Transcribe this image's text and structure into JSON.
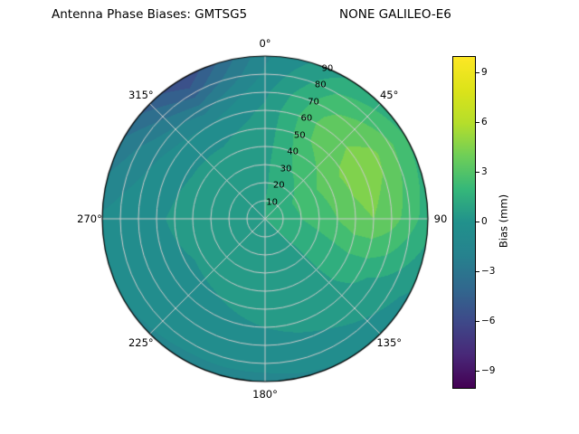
{
  "title": {
    "left": "Antenna Phase Biases: GMTSG5",
    "right": "NONE GALILEO-E6"
  },
  "chart_data": {
    "type": "heatmap",
    "projection": "polar",
    "title": "Antenna Phase Biases: GMTSG5        NONE GALILEO-E6",
    "azimuth_deg": [
      0,
      30,
      60,
      90,
      120,
      150,
      180,
      210,
      240,
      270,
      300,
      330
    ],
    "zenith_deg": [
      0,
      10,
      20,
      30,
      40,
      50,
      60,
      70,
      80,
      90
    ],
    "values_mm": [
      [
        1.0,
        1.0,
        1.0,
        1.0,
        1.0,
        1.0,
        1.0,
        1.0,
        1.0,
        1.0,
        1.0,
        1.0
      ],
      [
        1.0,
        1.2,
        1.5,
        1.5,
        1.2,
        0.8,
        0.6,
        0.5,
        0.5,
        0.6,
        0.8,
        0.9
      ],
      [
        0.9,
        1.5,
        2.2,
        2.0,
        1.2,
        0.7,
        0.5,
        0.3,
        0.3,
        0.5,
        0.6,
        0.8
      ],
      [
        0.8,
        2.0,
        2.8,
        2.5,
        1.3,
        0.6,
        0.4,
        0.2,
        0.2,
        0.4,
        0.4,
        0.6
      ],
      [
        0.6,
        2.5,
        3.5,
        3.0,
        1.4,
        0.5,
        0.3,
        0.1,
        0.1,
        0.3,
        0.2,
        0.3
      ],
      [
        0.4,
        3.0,
        4.2,
        3.8,
        1.4,
        0.4,
        0.2,
        0.0,
        -0.1,
        0.1,
        -0.1,
        -0.2
      ],
      [
        0.2,
        3.2,
        4.5,
        4.0,
        1.2,
        0.3,
        0.0,
        -0.2,
        -0.3,
        -0.1,
        -0.5,
        -1.0
      ],
      [
        -0.2,
        2.8,
        4.2,
        3.5,
        0.8,
        0.0,
        -0.3,
        -0.5,
        -0.5,
        -0.3,
        -1.2,
        -2.5
      ],
      [
        -0.8,
        2.0,
        3.2,
        2.5,
        0.3,
        -0.5,
        -0.8,
        -0.8,
        -0.7,
        -0.5,
        -2.0,
        -4.5
      ],
      [
        -1.2,
        1.0,
        2.0,
        1.5,
        -0.2,
        -1.0,
        -1.2,
        -1.2,
        -1.0,
        -0.8,
        -3.0,
        -6.0
      ]
    ],
    "value_range": [
      -10,
      10
    ],
    "contour_step_mm": 1,
    "colormap": "viridis",
    "colormap_stops": [
      "#440154",
      "#482878",
      "#3e4989",
      "#31688e",
      "#26828e",
      "#21918c",
      "#35b779",
      "#6ece58",
      "#b5de2b",
      "#dce319",
      "#fde725"
    ],
    "grid_color": "#cccccc",
    "angle_labels": [
      {
        "label": "0°",
        "angle_deg": 0
      },
      {
        "label": "45°",
        "angle_deg": 45
      },
      {
        "label": "90",
        "angle_deg": 90
      },
      {
        "label": "135°",
        "angle_deg": 135
      },
      {
        "label": "180°",
        "angle_deg": 180
      },
      {
        "label": "225°",
        "angle_deg": 225
      },
      {
        "label": "270°",
        "angle_deg": 270
      },
      {
        "label": "315°",
        "angle_deg": 315
      }
    ],
    "radial_tick_labels": [
      {
        "label": "10",
        "zenith_deg": 10
      },
      {
        "label": "20",
        "zenith_deg": 20
      },
      {
        "label": "30",
        "zenith_deg": 30
      },
      {
        "label": "40",
        "zenith_deg": 40
      },
      {
        "label": "50",
        "zenith_deg": 50
      },
      {
        "label": "60",
        "zenith_deg": 60
      },
      {
        "label": "70",
        "zenith_deg": 70
      },
      {
        "label": "80",
        "zenith_deg": 80
      },
      {
        "label": "90",
        "zenith_deg": 90
      }
    ],
    "radial_label_angle_deg": 22.5,
    "colorbar": {
      "label": "Bias (mm)",
      "ticks": [
        {
          "label": "−9",
          "value": -9
        },
        {
          "label": "−6",
          "value": -6
        },
        {
          "label": "−3",
          "value": -3
        },
        {
          "label": "0",
          "value": 0
        },
        {
          "label": "3",
          "value": 3
        },
        {
          "label": "6",
          "value": 6
        },
        {
          "label": "9",
          "value": 9
        }
      ]
    }
  }
}
